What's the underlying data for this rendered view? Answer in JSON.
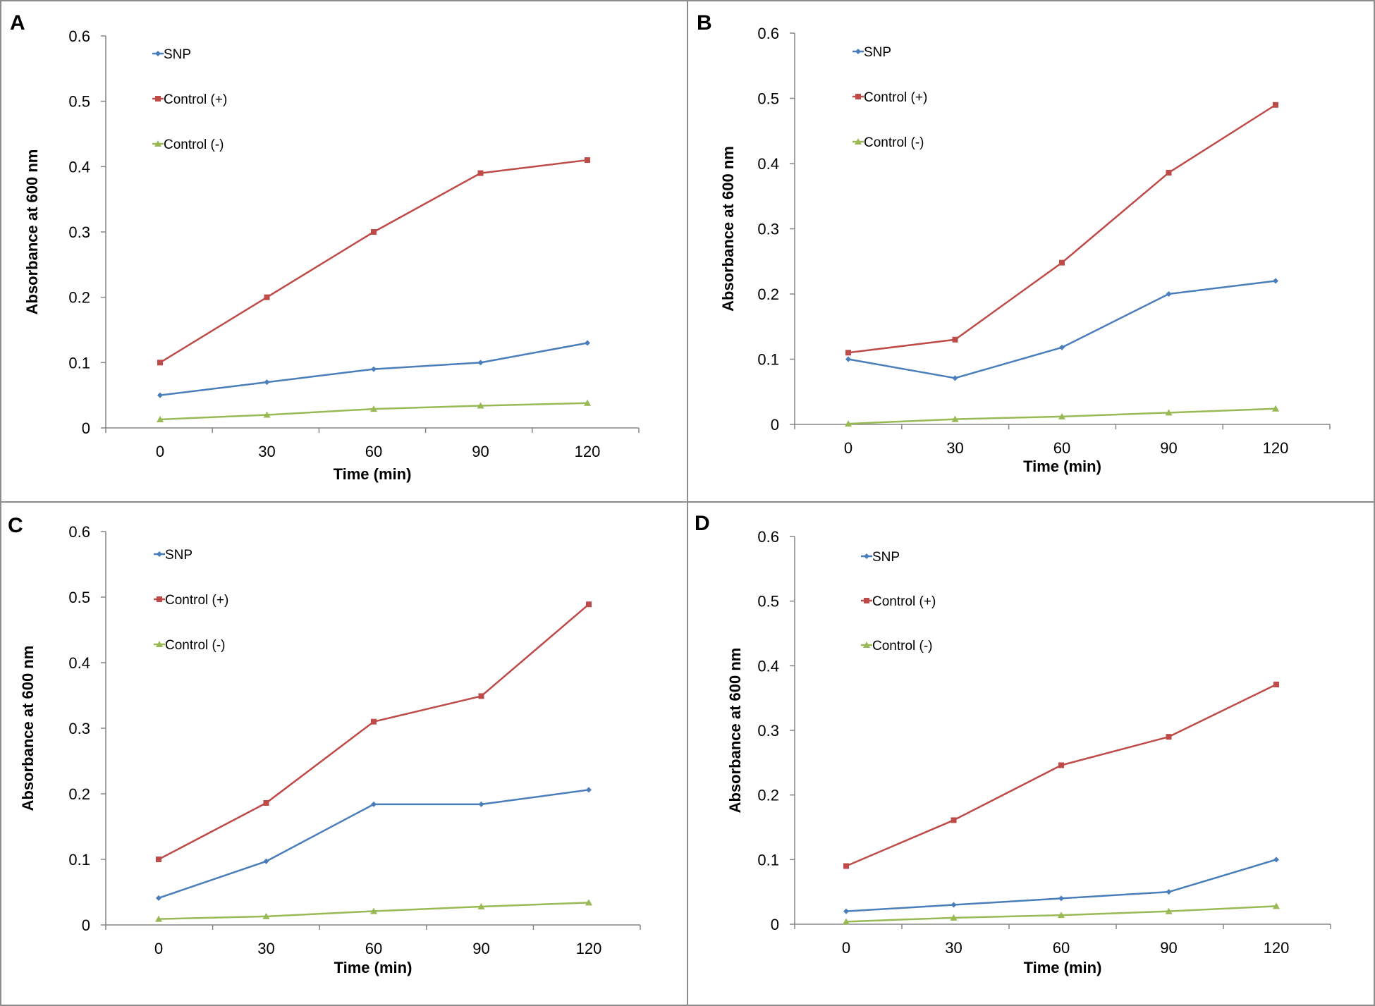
{
  "chart_data": [
    {
      "panel": "A",
      "type": "line",
      "categories": [
        "0",
        "30",
        "60",
        "90",
        "120"
      ],
      "yticks": [
        "0",
        "0.1",
        "0.2",
        "0.3",
        "0.4",
        "0.5",
        "0.6"
      ],
      "ylim": [
        0,
        0.6
      ],
      "xlabel": "Time (min)",
      "ylabel": "Absorbance at 600 nm",
      "legend_position": "top-left",
      "grid": false,
      "series": [
        {
          "name": "SNP",
          "marker": "diamond",
          "color": "#4a7ebb",
          "values": [
            0.05,
            0.07,
            0.09,
            0.1,
            0.13
          ]
        },
        {
          "name": "Control (+)",
          "marker": "square",
          "color": "#be4b48",
          "values": [
            0.1,
            0.2,
            0.3,
            0.39,
            0.41
          ]
        },
        {
          "name": "Control (-)",
          "marker": "triangle",
          "color": "#98b954",
          "values": [
            0.013,
            0.02,
            0.029,
            0.034,
            0.038
          ]
        }
      ]
    },
    {
      "panel": "B",
      "type": "line",
      "categories": [
        "0",
        "30",
        "60",
        "90",
        "120"
      ],
      "yticks": [
        "0",
        "0.1",
        "0.2",
        "0.3",
        "0.4",
        "0.5",
        "0.6"
      ],
      "ylim": [
        0,
        0.6
      ],
      "xlabel": "Time (min)",
      "ylabel": "Absorbance at 600 nm",
      "legend_position": "top-left",
      "grid": false,
      "series": [
        {
          "name": "SNP",
          "marker": "diamond",
          "color": "#4a7ebb",
          "values": [
            0.1,
            0.071,
            0.118,
            0.2,
            0.22
          ]
        },
        {
          "name": "Control (+)",
          "marker": "square",
          "color": "#be4b48",
          "values": [
            0.11,
            0.13,
            0.248,
            0.386,
            0.49
          ]
        },
        {
          "name": "Control (-)",
          "marker": "triangle",
          "color": "#98b954",
          "values": [
            0.001,
            0.008,
            0.012,
            0.018,
            0.024
          ]
        }
      ]
    },
    {
      "panel": "C",
      "type": "line",
      "categories": [
        "0",
        "30",
        "60",
        "90",
        "120"
      ],
      "yticks": [
        "0",
        "0.1",
        "0.2",
        "0.3",
        "0.4",
        "0.5",
        "0.6"
      ],
      "ylim": [
        0,
        0.6
      ],
      "xlabel": "Time (min)",
      "ylabel": "Absorbance at 600 nm",
      "legend_position": "top-left",
      "grid": false,
      "series": [
        {
          "name": "SNP",
          "marker": "diamond",
          "color": "#4a7ebb",
          "values": [
            0.041,
            0.097,
            0.184,
            0.184,
            0.206
          ]
        },
        {
          "name": "Control (+)",
          "marker": "square",
          "color": "#be4b48",
          "values": [
            0.1,
            0.186,
            0.31,
            0.349,
            0.489
          ]
        },
        {
          "name": "Control (-)",
          "marker": "triangle",
          "color": "#98b954",
          "values": [
            0.009,
            0.013,
            0.021,
            0.028,
            0.034
          ]
        }
      ]
    },
    {
      "panel": "D",
      "type": "line",
      "categories": [
        "0",
        "30",
        "60",
        "90",
        "120"
      ],
      "yticks": [
        "0",
        "0.1",
        "0.2",
        "0.3",
        "0.4",
        "0.5",
        "0.6"
      ],
      "ylim": [
        0,
        0.6
      ],
      "xlabel": "Time (min)",
      "ylabel": "Absorbance at 600 nm",
      "legend_position": "top-left",
      "grid": false,
      "series": [
        {
          "name": "SNP",
          "marker": "diamond",
          "color": "#4a7ebb",
          "values": [
            0.02,
            0.03,
            0.04,
            0.05,
            0.1
          ]
        },
        {
          "name": "Control (+)",
          "marker": "square",
          "color": "#be4b48",
          "values": [
            0.09,
            0.161,
            0.246,
            0.29,
            0.371
          ]
        },
        {
          "name": "Control (-)",
          "marker": "triangle",
          "color": "#98b954",
          "values": [
            0.004,
            0.01,
            0.014,
            0.02,
            0.028
          ]
        }
      ]
    }
  ]
}
